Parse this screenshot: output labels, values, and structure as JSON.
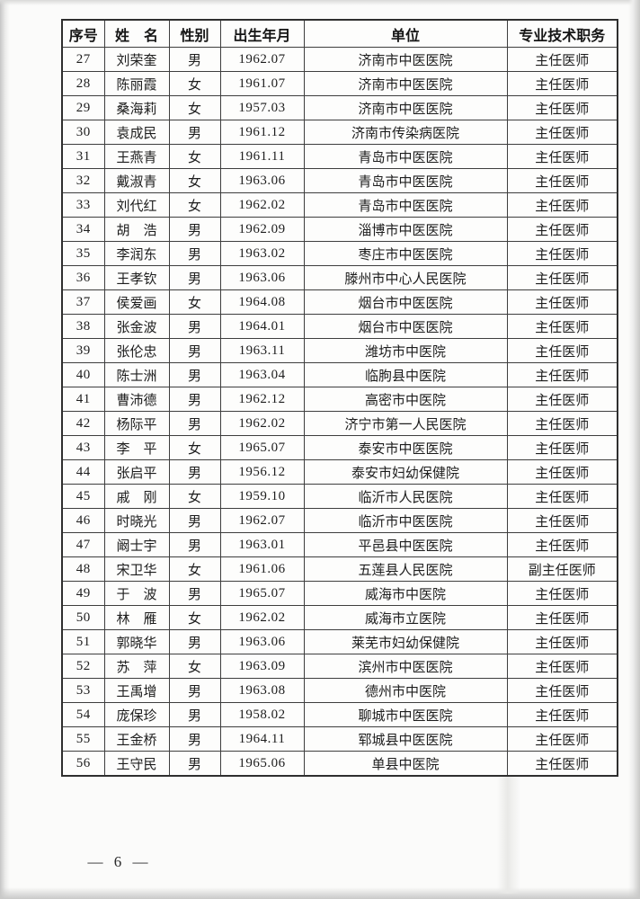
{
  "table": {
    "col_keys": [
      "no",
      "name",
      "gender",
      "birth",
      "unit",
      "title"
    ],
    "headers": [
      "序号",
      "姓　名",
      "性别",
      "出生年月",
      "单位",
      "专业技术职务"
    ],
    "rows": [
      [
        "27",
        "刘荣奎",
        "男",
        "1962.07",
        "济南市中医医院",
        "主任医师"
      ],
      [
        "28",
        "陈丽霞",
        "女",
        "1961.07",
        "济南市中医医院",
        "主任医师"
      ],
      [
        "29",
        "桑海莉",
        "女",
        "1957.03",
        "济南市中医医院",
        "主任医师"
      ],
      [
        "30",
        "袁成民",
        "男",
        "1961.12",
        "济南市传染病医院",
        "主任医师"
      ],
      [
        "31",
        "王燕青",
        "女",
        "1961.11",
        "青岛市中医医院",
        "主任医师"
      ],
      [
        "32",
        "戴淑青",
        "女",
        "1963.06",
        "青岛市中医医院",
        "主任医师"
      ],
      [
        "33",
        "刘代红",
        "女",
        "1962.02",
        "青岛市中医医院",
        "主任医师"
      ],
      [
        "34",
        "胡　浩",
        "男",
        "1962.09",
        "淄博市中医医院",
        "主任医师"
      ],
      [
        "35",
        "李润东",
        "男",
        "1963.02",
        "枣庄市中医医院",
        "主任医师"
      ],
      [
        "36",
        "王孝钦",
        "男",
        "1963.06",
        "滕州市中心人民医院",
        "主任医师"
      ],
      [
        "37",
        "侯爱画",
        "女",
        "1964.08",
        "烟台市中医医院",
        "主任医师"
      ],
      [
        "38",
        "张金波",
        "男",
        "1964.01",
        "烟台市中医医院",
        "主任医师"
      ],
      [
        "39",
        "张伦忠",
        "男",
        "1963.11",
        "潍坊市中医院",
        "主任医师"
      ],
      [
        "40",
        "陈士洲",
        "男",
        "1963.04",
        "临朐县中医院",
        "主任医师"
      ],
      [
        "41",
        "曹沛德",
        "男",
        "1962.12",
        "高密市中医院",
        "主任医师"
      ],
      [
        "42",
        "杨际平",
        "男",
        "1962.02",
        "济宁市第一人民医院",
        "主任医师"
      ],
      [
        "43",
        "李　平",
        "女",
        "1965.07",
        "泰安市中医医院",
        "主任医师"
      ],
      [
        "44",
        "张启平",
        "男",
        "1956.12",
        "泰安市妇幼保健院",
        "主任医师"
      ],
      [
        "45",
        "戚　刚",
        "女",
        "1959.10",
        "临沂市人民医院",
        "主任医师"
      ],
      [
        "46",
        "时晓光",
        "男",
        "1962.07",
        "临沂市中医医院",
        "主任医师"
      ],
      [
        "47",
        "阚士宇",
        "男",
        "1963.01",
        "平邑县中医医院",
        "主任医师"
      ],
      [
        "48",
        "宋卫华",
        "女",
        "1961.06",
        "五莲县人民医院",
        "副主任医师"
      ],
      [
        "49",
        "于　波",
        "男",
        "1965.07",
        "威海市中医院",
        "主任医师"
      ],
      [
        "50",
        "林　雁",
        "女",
        "1962.02",
        "威海市立医院",
        "主任医师"
      ],
      [
        "51",
        "郭晓华",
        "男",
        "1963.06",
        "莱芜市妇幼保健院",
        "主任医师"
      ],
      [
        "52",
        "苏　萍",
        "女",
        "1963.09",
        "滨州市中医医院",
        "主任医师"
      ],
      [
        "53",
        "王禹增",
        "男",
        "1963.08",
        "德州市中医院",
        "主任医师"
      ],
      [
        "54",
        "庞保珍",
        "男",
        "1958.02",
        "聊城市中医医院",
        "主任医师"
      ],
      [
        "55",
        "王金桥",
        "男",
        "1964.11",
        "郓城县中医医院",
        "主任医师"
      ],
      [
        "56",
        "王守民",
        "男",
        "1965.06",
        "单县中医院",
        "主任医师"
      ]
    ]
  },
  "footer": {
    "page_label": "— 6 —"
  }
}
